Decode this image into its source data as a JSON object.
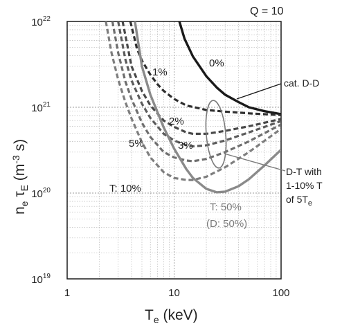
{
  "chart_data": {
    "type": "line",
    "title": "Q = 10",
    "xlabel": {
      "main": "T",
      "sub": "e",
      "unit": " (keV)"
    },
    "ylabel": {
      "p1": "n",
      "sub1": "e",
      "p2": " τ",
      "sub2": "E",
      "p3": " (m",
      "sup": "-3",
      "p4": " s)"
    },
    "x_scale": "log",
    "y_scale": "log",
    "xlim": [
      1,
      100
    ],
    "ylim": [
      1e+19,
      1e+22
    ],
    "x_ticks": [
      {
        "value": 1,
        "label": "1"
      },
      {
        "value": 10,
        "label": "10"
      },
      {
        "value": 100,
        "label": "100"
      }
    ],
    "y_ticks": [
      {
        "value": 1e+19,
        "base": "10",
        "exp": "19"
      },
      {
        "value": 1e+20,
        "base": "10",
        "exp": "20"
      },
      {
        "value": 1e+21,
        "base": "10",
        "exp": "21"
      },
      {
        "value": 1e+22,
        "base": "10",
        "exp": "22"
      }
    ],
    "grid": true,
    "series": [
      {
        "name": "0%",
        "style": "solid-black",
        "color": "#1a1a1a",
        "x": [
          11.2,
          12.5,
          15,
          20,
          25,
          30,
          40,
          50,
          70,
          100
        ],
        "y": [
          1e+22,
          6.3e+21,
          3.9e+21,
          2.3e+21,
          1.7e+21,
          1.4e+21,
          1.15e+21,
          1e+21,
          9e+20,
          8.3e+20
        ]
      },
      {
        "name": "1%",
        "style": "dashed",
        "color": "#2e2e2e",
        "x": [
          3.9,
          4.5,
          5,
          6,
          7,
          8,
          10,
          13,
          20,
          30,
          50,
          100
        ],
        "y": [
          1e+22,
          4.8e+21,
          3.5e+21,
          2.4e+21,
          1.85e+21,
          1.55e+21,
          1.25e+21,
          1.05e+21,
          9.3e+20,
          8.9e+20,
          8.5e+20,
          8.1e+20
        ]
      },
      {
        "name": "2%",
        "style": "dashed",
        "color": "#484848",
        "x": [
          3.3,
          4,
          5,
          6,
          8,
          10,
          13,
          15,
          20,
          30,
          50,
          100
        ],
        "y": [
          1e+22,
          3e+21,
          1.55e+21,
          1.05e+21,
          7e+20,
          5.9e+20,
          5.1e+20,
          4.9e+20,
          4.9e+20,
          5.3e+20,
          6e+20,
          7.3e+20
        ]
      },
      {
        "name": "3%",
        "style": "dashed",
        "color": "#5c5c5c",
        "x": [
          3.0,
          3.5,
          4,
          5,
          6,
          8,
          10,
          13,
          15,
          20,
          30,
          50,
          100
        ],
        "y": [
          1e+22,
          3.6e+21,
          2.05e+21,
          1.1e+21,
          7.5e+20,
          4.9e+20,
          4.1e+20,
          3.6e+20,
          3.5e+20,
          3.6e+20,
          4.1e+20,
          5.1e+20,
          6.9e+20
        ]
      },
      {
        "name": "5%",
        "style": "dashed",
        "color": "#6e6e6e",
        "x": [
          2.65,
          3,
          3.5,
          4,
          5,
          6,
          8,
          10,
          13,
          15,
          20,
          30,
          50,
          100
        ],
        "y": [
          1e+22,
          4.3e+21,
          2e+21,
          1.25e+21,
          6.6e+20,
          4.5e+20,
          3e+20,
          2.6e+20,
          2.4e+20,
          2.35e+20,
          2.5e+20,
          3e+20,
          4e+20,
          6.3e+20
        ]
      },
      {
        "name": "T: 10%",
        "style": "dashed",
        "color": "#7e7e7e",
        "x": [
          2.3,
          2.6,
          3,
          3.5,
          4,
          5,
          6,
          8,
          10,
          13,
          15,
          20,
          30,
          50,
          100
        ],
        "y": [
          1e+22,
          4.3e+21,
          2.1e+21,
          1.15e+21,
          7.4e+20,
          3.9e+20,
          2.6e+20,
          1.75e+20,
          1.5e+20,
          1.42e+20,
          1.42e+20,
          1.55e+20,
          2e+20,
          3e+20,
          5.6e+20
        ]
      },
      {
        "name": "T: 50%",
        "style": "solid-gray",
        "color": "#8a8a8a",
        "x": [
          4.3,
          5,
          6,
          8,
          10,
          13,
          15,
          20,
          25,
          30,
          40,
          50,
          70,
          100
        ],
        "y": [
          1e+22,
          3e+21,
          1.4e+21,
          5.8e+20,
          3.3e+20,
          1.9e+20,
          1.5e+20,
          1.12e+20,
          1.02e+20,
          1.04e+20,
          1.2e+20,
          1.45e+20,
          2.1e+20,
          3.2e+20
        ]
      }
    ],
    "annotations": {
      "pct0": "0%",
      "pct1": "1%",
      "pct2": "2%",
      "pct3": "3%",
      "pct5": "5%",
      "t10": "T: 10%",
      "t50": "T: 50%",
      "d50": "(D: 50%)",
      "catdd": "cat. D-D",
      "dt1": "D-T with",
      "dt2": "1-10% T",
      "dt3a": "of 5T",
      "dt3b": "e"
    }
  }
}
